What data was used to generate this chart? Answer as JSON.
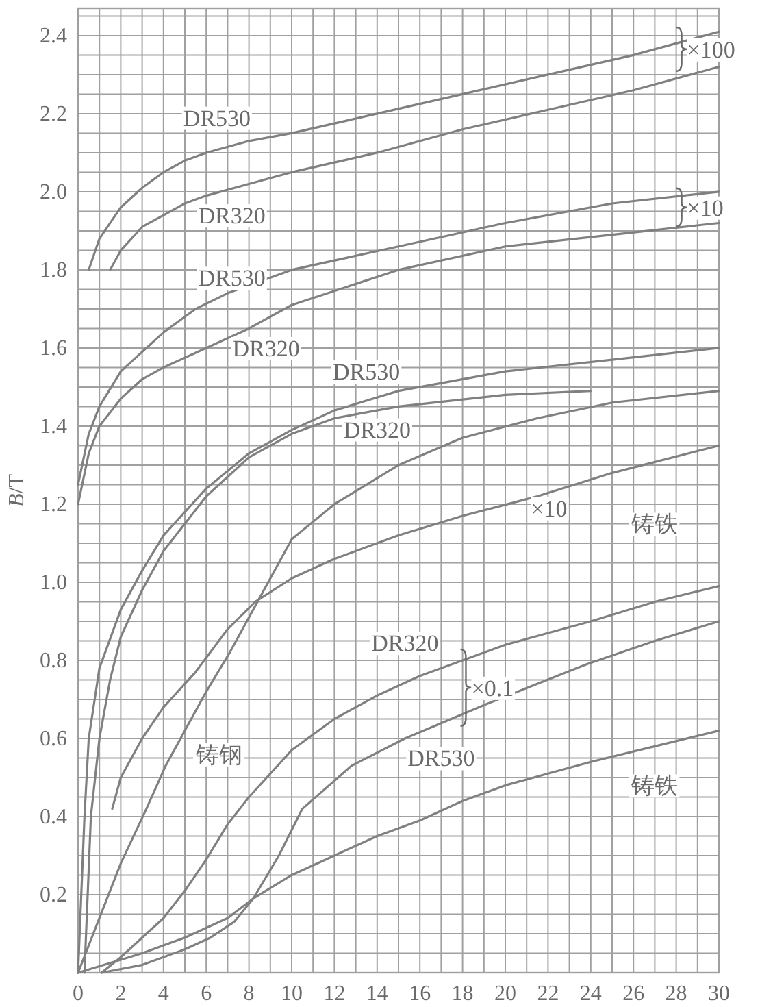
{
  "chart_data": {
    "type": "line",
    "ylabel": "*B*/T",
    "xlim": [
      0,
      30
    ],
    "ylim": [
      0,
      2.47
    ],
    "grid": true,
    "xticks": [
      0,
      {
        "value": 1,
        "label": null
      },
      2,
      {
        "value": 3,
        "label": null
      },
      4,
      {
        "value": 5,
        "label": null
      },
      6,
      {
        "value": 7,
        "label": null
      },
      8,
      {
        "value": 9,
        "label": null
      },
      10,
      {
        "value": 11,
        "label": null
      },
      12,
      {
        "value": 13,
        "label": null
      },
      14,
      {
        "value": 15,
        "label": null
      },
      16,
      {
        "value": 17,
        "label": null
      },
      18,
      {
        "value": 19,
        "label": null
      },
      20,
      {
        "value": 21,
        "label": null
      },
      22,
      {
        "value": 23,
        "label": null
      },
      24,
      {
        "value": 25,
        "label": null
      },
      26,
      {
        "value": 27,
        "label": null
      },
      28,
      {
        "value": 29,
        "label": null
      },
      30
    ],
    "yticks": [
      {
        "value": 0,
        "label": null
      },
      {
        "value": 0.05,
        "label": null
      },
      {
        "value": 0.1,
        "label": null
      },
      {
        "value": 0.15,
        "label": null
      },
      0.2,
      {
        "value": 0.25,
        "label": null
      },
      {
        "value": 0.3,
        "label": null
      },
      {
        "value": 0.35,
        "label": null
      },
      0.4,
      {
        "value": 0.45,
        "label": null
      },
      {
        "value": 0.5,
        "label": null
      },
      {
        "value": 0.55,
        "label": null
      },
      0.6,
      {
        "value": 0.65,
        "label": null
      },
      {
        "value": 0.7,
        "label": null
      },
      {
        "value": 0.75,
        "label": null
      },
      0.8,
      {
        "value": 0.85,
        "label": null
      },
      {
        "value": 0.9,
        "label": null
      },
      {
        "value": 0.95,
        "label": null
      },
      {
        "value": 1,
        "label": "1.0"
      },
      {
        "value": 1.05,
        "label": null
      },
      {
        "value": 1.1,
        "label": null
      },
      {
        "value": 1.15,
        "label": null
      },
      1.2,
      {
        "value": 1.25,
        "label": null
      },
      {
        "value": 1.3,
        "label": null
      },
      {
        "value": 1.35,
        "label": null
      },
      1.4,
      {
        "value": 1.45,
        "label": null
      },
      {
        "value": 1.5,
        "label": null
      },
      {
        "value": 1.55,
        "label": null
      },
      1.6,
      {
        "value": 1.65,
        "label": null
      },
      {
        "value": 1.7,
        "label": null
      },
      {
        "value": 1.75,
        "label": null
      },
      1.8,
      {
        "value": 1.85,
        "label": null
      },
      {
        "value": 1.9,
        "label": null
      },
      {
        "value": 1.95,
        "label": null
      },
      {
        "value": 2,
        "label": "2.0"
      },
      {
        "value": 2.05,
        "label": null
      },
      {
        "value": 2.1,
        "label": null
      },
      {
        "value": 2.15,
        "label": null
      },
      2.2,
      {
        "value": 2.25,
        "label": null
      },
      {
        "value": 2.3,
        "label": null
      },
      {
        "value": 2.35,
        "label": null
      },
      2.4,
      {
        "value": 2.45,
        "label": null
      }
    ],
    "series": [
      {
        "name": "DR530",
        "color": "#808080",
        "x": [
          0.5,
          1,
          2,
          3,
          4,
          5,
          6,
          8,
          10,
          14,
          18,
          22,
          26,
          30
        ],
        "values": [
          1.8,
          1.88,
          1.96,
          2.01,
          2.05,
          2.08,
          2.1,
          2.13,
          2.15,
          2.2,
          2.25,
          2.3,
          2.35,
          2.41
        ]
      },
      {
        "name": "DR320",
        "color": "#808080",
        "x": [
          1.5,
          2,
          3,
          4,
          5,
          6,
          8,
          10,
          14,
          18,
          22,
          26,
          30
        ],
        "values": [
          1.8,
          1.85,
          1.91,
          1.94,
          1.97,
          1.99,
          2.02,
          2.05,
          2.1,
          2.16,
          2.21,
          2.26,
          2.32
        ]
      },
      {
        "name": "DR530",
        "color": "#808080",
        "x": [
          0,
          0.5,
          1,
          2,
          3,
          4,
          5.5,
          7,
          10,
          15,
          20,
          25,
          30
        ],
        "values": [
          1.25,
          1.38,
          1.45,
          1.54,
          1.59,
          1.64,
          1.7,
          1.74,
          1.8,
          1.86,
          1.92,
          1.97,
          2.0
        ]
      },
      {
        "name": "DR320",
        "color": "#808080",
        "x": [
          0,
          0.5,
          1,
          2,
          3,
          4,
          6,
          8,
          10,
          15,
          20,
          25,
          30
        ],
        "values": [
          1.2,
          1.33,
          1.4,
          1.47,
          1.52,
          1.55,
          1.6,
          1.65,
          1.71,
          1.8,
          1.86,
          1.89,
          1.92
        ]
      },
      {
        "name": "DR530",
        "color": "#808080",
        "x": [
          0,
          0.3,
          0.5,
          1,
          2,
          3,
          4,
          6,
          8,
          10,
          12,
          15,
          20,
          25,
          30
        ],
        "values": [
          0,
          0.4,
          0.6,
          0.78,
          0.93,
          1.03,
          1.12,
          1.24,
          1.33,
          1.39,
          1.44,
          1.49,
          1.54,
          1.57,
          1.6
        ]
      },
      {
        "name": "DR320",
        "color": "#808080",
        "x": [
          0.3,
          0.6,
          1,
          1.5,
          2,
          3,
          4,
          6,
          8,
          10,
          12,
          15,
          20,
          24
        ],
        "values": [
          0,
          0.4,
          0.6,
          0.75,
          0.86,
          0.98,
          1.08,
          1.22,
          1.32,
          1.38,
          1.42,
          1.45,
          1.48,
          1.49
        ]
      },
      {
        "name": "铸钢",
        "color": "#808080",
        "x": [
          0,
          1,
          2,
          3.2,
          4.1,
          5,
          6,
          7.1,
          8.3,
          10,
          12,
          15,
          18,
          21.5,
          25,
          30
        ],
        "values": [
          0,
          0.14,
          0.28,
          0.42,
          0.53,
          0.62,
          0.72,
          0.82,
          0.94,
          1.11,
          1.2,
          1.3,
          1.37,
          1.42,
          1.46,
          1.49
        ]
      },
      {
        "name": "铸铁",
        "color": "#808080",
        "x": [
          1.6,
          2,
          3,
          4,
          5.5,
          7,
          8.3,
          10,
          12,
          15,
          18,
          21.5,
          25,
          30
        ],
        "values": [
          0.42,
          0.5,
          0.6,
          0.68,
          0.77,
          0.88,
          0.95,
          1.01,
          1.06,
          1.12,
          1.17,
          1.22,
          1.28,
          1.35
        ]
      },
      {
        "name": "DR320",
        "color": "#808080",
        "x": [
          1.1,
          2,
          3,
          4,
          5,
          6,
          7,
          8,
          10,
          12,
          14,
          16,
          18,
          20,
          24,
          27,
          30
        ],
        "values": [
          0,
          0.04,
          0.09,
          0.14,
          0.21,
          0.29,
          0.38,
          0.45,
          0.57,
          0.65,
          0.71,
          0.76,
          0.8,
          0.84,
          0.9,
          0.95,
          0.99
        ]
      },
      {
        "name": "DR530",
        "color": "#808080",
        "x": [
          1.1,
          3,
          5,
          6.2,
          7.3,
          8.2,
          9.4,
          10.5,
          12.8,
          15.3,
          19.2,
          23.8,
          27,
          30
        ],
        "values": [
          0,
          0.02,
          0.06,
          0.09,
          0.13,
          0.19,
          0.3,
          0.42,
          0.53,
          0.6,
          0.69,
          0.79,
          0.85,
          0.9
        ]
      },
      {
        "name": "铸铁",
        "color": "#808080",
        "x": [
          0,
          3,
          5,
          7,
          8.2,
          10,
          12,
          14,
          16,
          18,
          20,
          22,
          24,
          27,
          30
        ],
        "values": [
          0,
          0.05,
          0.09,
          0.14,
          0.19,
          0.25,
          0.3,
          0.35,
          0.39,
          0.44,
          0.48,
          0.51,
          0.54,
          0.58,
          0.62
        ]
      }
    ],
    "annotations": [
      "×100",
      "×10",
      "×10",
      "×0.1"
    ]
  }
}
